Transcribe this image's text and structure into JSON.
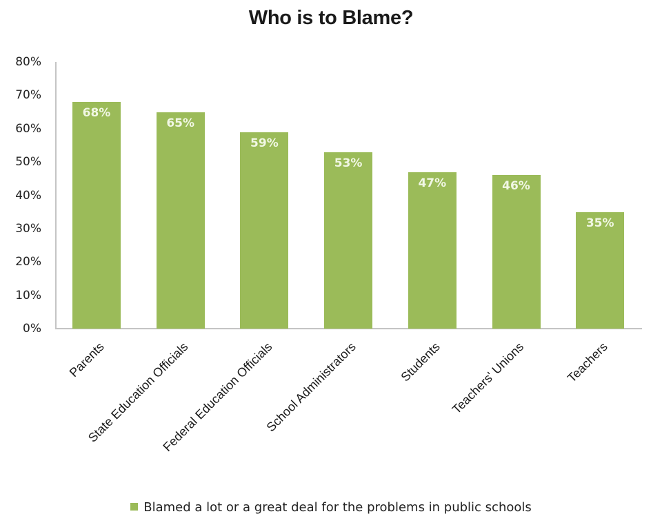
{
  "chart_data": {
    "type": "bar",
    "title": "Who is to Blame?",
    "xlabel": "",
    "ylabel": "",
    "ylim": [
      0,
      80
    ],
    "yticks": [
      "0%",
      "10%",
      "20%",
      "30%",
      "40%",
      "50%",
      "60%",
      "70%",
      "80%"
    ],
    "grid": false,
    "legend_position": "bottom",
    "categories": [
      "Parents",
      "State Education Officials",
      "Federal Education Officials",
      "School Administrators",
      "Students",
      "Teachers' Unions",
      "Teachers"
    ],
    "series": [
      {
        "name": "Blamed a lot or a great deal for the problems in public schools",
        "values": [
          68,
          65,
          59,
          53,
          47,
          46,
          35
        ],
        "data_labels": [
          "68%",
          "65%",
          "59%",
          "53%",
          "47%",
          "46%",
          "35%"
        ],
        "color": "#9bbb59"
      }
    ]
  },
  "colors": {
    "bar": "#9bbb59",
    "bar_label": "#f1f7e4",
    "axis": "#c4c4c4"
  }
}
